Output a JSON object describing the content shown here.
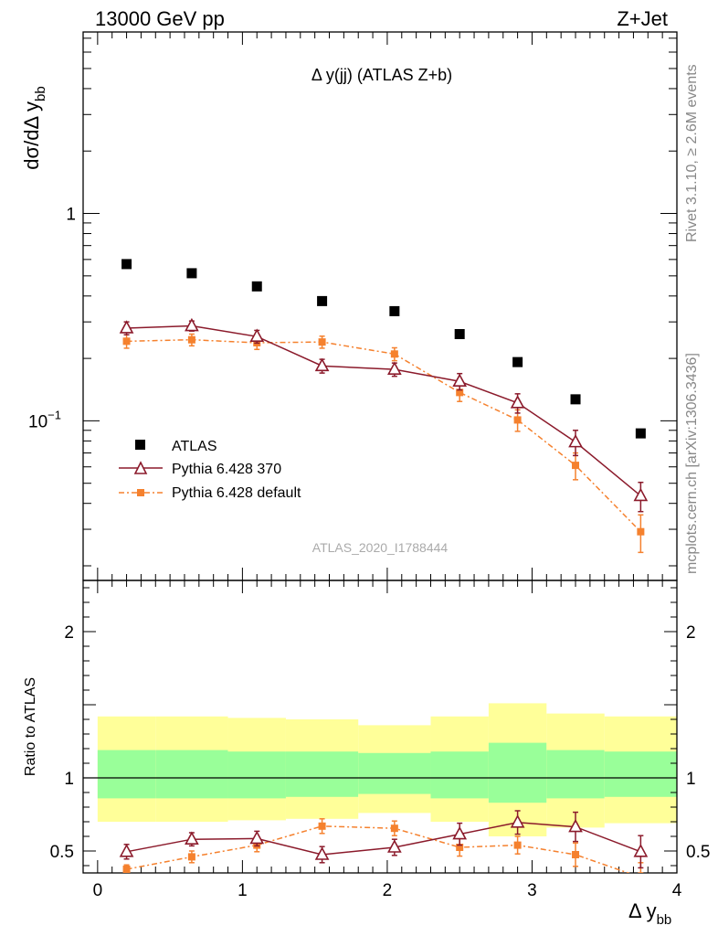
{
  "header": {
    "left": "13000 GeV pp",
    "right": "Z+Jet"
  },
  "side_text": {
    "rivet": "Rivet 3.1.10, ≥ 2.6M events",
    "mcplots": "mcplots.cern.ch [arXiv:1306.3436]"
  },
  "colors": {
    "atlas": "#000000",
    "pythia370": "#8b1a2b",
    "pythia_default": "#f5812e",
    "band_inner": "#99ff99",
    "band_outer": "#ffff99"
  },
  "chart_data": [
    {
      "type": "scatter",
      "title": "Δ y(jj) (ATLAS Z+b)",
      "ylabel": "dσ/dΔ y",
      "ylabel_sub": "bb",
      "xlabel": "",
      "watermark": "ATLAS_2020_I1788444",
      "yscale": "log",
      "ylim": [
        0.017,
        7.5
      ],
      "xlim": [
        -0.1,
        4.0
      ],
      "y_ticks": [
        {
          "v": 1,
          "label": "1"
        },
        {
          "v": 0.1,
          "label": "10",
          "exp": "−1"
        }
      ],
      "legend": [
        {
          "name": "ATLAS",
          "marker": "square"
        },
        {
          "name": "Pythia 6.428 370",
          "marker": "triangle"
        },
        {
          "name": "Pythia 6.428 default",
          "marker": "small-square"
        }
      ],
      "series": [
        {
          "name": "ATLAS",
          "x": [
            0.2,
            0.65,
            1.1,
            1.55,
            2.05,
            2.5,
            2.9,
            3.3,
            3.75
          ],
          "values": [
            0.57,
            0.515,
            0.445,
            0.378,
            0.338,
            0.262,
            0.192,
            0.127,
            0.087
          ]
        },
        {
          "name": "Pythia 6.428 370",
          "x": [
            0.2,
            0.65,
            1.1,
            1.55,
            2.05,
            2.5,
            2.9,
            3.3,
            3.75
          ],
          "values": [
            0.28,
            0.287,
            0.255,
            0.184,
            0.177,
            0.155,
            0.122,
            0.079,
            0.0435
          ],
          "err": [
            0.02,
            0.016,
            0.018,
            0.014,
            0.013,
            0.014,
            0.013,
            0.011,
            0.007
          ]
        },
        {
          "name": "Pythia 6.428 default",
          "x": [
            0.2,
            0.65,
            1.1,
            1.55,
            2.05,
            2.5,
            2.9,
            3.3,
            3.75
          ],
          "values": [
            0.242,
            0.246,
            0.238,
            0.24,
            0.21,
            0.137,
            0.101,
            0.061,
            0.0292
          ],
          "err": [
            0.018,
            0.016,
            0.017,
            0.016,
            0.015,
            0.013,
            0.012,
            0.009,
            0.006
          ]
        }
      ]
    },
    {
      "type": "scatter",
      "title": "",
      "ylabel": "Ratio to ATLAS",
      "xlabel": "Δ y",
      "xlabel_sub": "bb",
      "xlim": [
        -0.1,
        4.0
      ],
      "ylim": [
        0.35,
        2.35
      ],
      "x_ticks": [
        0,
        1,
        2,
        3,
        4
      ],
      "y_ticks": [
        0.5,
        1,
        2
      ],
      "bins": [
        [
          0.0,
          0.4
        ],
        [
          0.4,
          0.9
        ],
        [
          0.9,
          1.3
        ],
        [
          1.3,
          1.8
        ],
        [
          1.8,
          2.3
        ],
        [
          2.3,
          2.7
        ],
        [
          2.7,
          3.1
        ],
        [
          3.1,
          3.5
        ],
        [
          3.5,
          4.0
        ]
      ],
      "band_inner": [
        [
          0.86,
          1.19
        ],
        [
          0.86,
          1.19
        ],
        [
          0.86,
          1.18
        ],
        [
          0.87,
          1.18
        ],
        [
          0.89,
          1.17
        ],
        [
          0.86,
          1.18
        ],
        [
          0.83,
          1.24
        ],
        [
          0.86,
          1.19
        ],
        [
          0.87,
          1.18
        ]
      ],
      "band_outer": [
        [
          0.7,
          1.42
        ],
        [
          0.7,
          1.42
        ],
        [
          0.71,
          1.41
        ],
        [
          0.72,
          1.4
        ],
        [
          0.76,
          1.36
        ],
        [
          0.7,
          1.42
        ],
        [
          0.6,
          1.51
        ],
        [
          0.66,
          1.44
        ],
        [
          0.69,
          1.42
        ]
      ],
      "series": [
        {
          "name": "Pythia 6.428 370",
          "x": [
            0.2,
            0.65,
            1.1,
            1.55,
            2.05,
            2.5,
            2.9,
            3.3,
            3.75
          ],
          "values": [
            0.495,
            0.58,
            0.585,
            0.475,
            0.525,
            0.615,
            0.695,
            0.665,
            0.495
          ],
          "err": [
            0.05,
            0.045,
            0.05,
            0.055,
            0.055,
            0.075,
            0.08,
            0.1,
            0.11
          ]
        },
        {
          "name": "Pythia 6.428 default",
          "x": [
            0.2,
            0.65,
            1.1,
            1.55,
            2.05,
            2.5,
            2.9,
            3.3,
            3.75
          ],
          "values": [
            0.375,
            0.46,
            0.54,
            0.67,
            0.655,
            0.525,
            0.54,
            0.475,
            0.32
          ],
          "err": [
            0.03,
            0.04,
            0.045,
            0.05,
            0.05,
            0.06,
            0.06,
            0.08,
            0.1
          ]
        }
      ]
    }
  ]
}
